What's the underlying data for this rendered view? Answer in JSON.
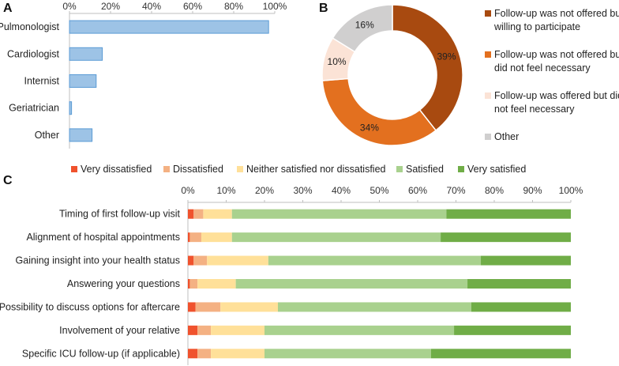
{
  "panels": {
    "a_label": "A",
    "b_label": "B",
    "c_label": "C"
  },
  "colors": {
    "bar_fill": "#9dc3e6",
    "bar_stroke": "#5b9bd5",
    "axis": "#bfbfbf",
    "donut": [
      "#a84a10",
      "#e3701f",
      "#fbe3d6",
      "#d0cfcf"
    ],
    "stack": [
      "#f0522d",
      "#f4b183",
      "#ffe099",
      "#a9d18e",
      "#70ad47"
    ]
  },
  "chart_data": [
    {
      "id": "A",
      "type": "bar",
      "orientation": "horizontal",
      "title": "",
      "categories": [
        "Pulmonologist",
        "Cardiologist",
        "Internist",
        "Geriatrician",
        "Other"
      ],
      "values": [
        97,
        16,
        13,
        1,
        11
      ],
      "xlim": [
        0,
        100
      ],
      "xticks": [
        "0%",
        "20%",
        "40%",
        "60%",
        "80%",
        "100%"
      ],
      "xtick_values": [
        0,
        20,
        40,
        60,
        80,
        100
      ],
      "xlabel": "",
      "ylabel": "",
      "grid": false
    },
    {
      "id": "B",
      "type": "pie",
      "donut": true,
      "labels": [
        "Follow-up was not offered but willing to participate",
        "Follow-up was not offered but did not feel necessary",
        "Follow-up was offered but did not feel necessary",
        "Other"
      ],
      "legend_lines": [
        [
          "Follow-up was not offered but",
          "willing to participate"
        ],
        [
          "Follow-up was not offered but",
          "did not feel necessary"
        ],
        [
          "Follow-up was offered but did",
          "not feel necessary"
        ],
        [
          "Other"
        ]
      ],
      "values": [
        39,
        34,
        10,
        16
      ],
      "value_labels": [
        "39%",
        "34%",
        "10%",
        "16%"
      ],
      "legend_position": "right"
    },
    {
      "id": "C",
      "type": "bar",
      "orientation": "horizontal",
      "stacked": true,
      "normalized": true,
      "categories": [
        "Timing of first follow-up visit",
        "Alignment of hospital appointments",
        "Gaining insight into your health status",
        "Answering your questions",
        "Possibility to discuss options for aftercare",
        "Involvement of your relative",
        "Specific ICU follow-up (if applicable)"
      ],
      "series": [
        {
          "name": "Very dissatisfied",
          "values": [
            1.5,
            0.5,
            1.5,
            0.5,
            2,
            2.5,
            2.5
          ]
        },
        {
          "name": "Dissatisfied",
          "values": [
            2.5,
            3,
            3.5,
            2,
            6.5,
            3.5,
            3.5
          ]
        },
        {
          "name": "Neither satisfied nor dissatisfied",
          "values": [
            7.5,
            8,
            16,
            10,
            15,
            14,
            14
          ]
        },
        {
          "name": "Satisfied",
          "values": [
            56,
            54.5,
            55.5,
            60.5,
            50.5,
            49.5,
            43.5
          ]
        },
        {
          "name": "Very satisfied",
          "values": [
            32.5,
            34,
            23.5,
            27,
            26,
            30.5,
            36.5
          ]
        }
      ],
      "xlim": [
        0,
        100
      ],
      "xticks": [
        "0%",
        "10%",
        "20%",
        "30%",
        "40%",
        "50%",
        "60%",
        "70%",
        "80%",
        "90%",
        "100%"
      ],
      "xtick_values": [
        0,
        10,
        20,
        30,
        40,
        50,
        60,
        70,
        80,
        90,
        100
      ],
      "legend_position": "top",
      "grid": false
    }
  ]
}
